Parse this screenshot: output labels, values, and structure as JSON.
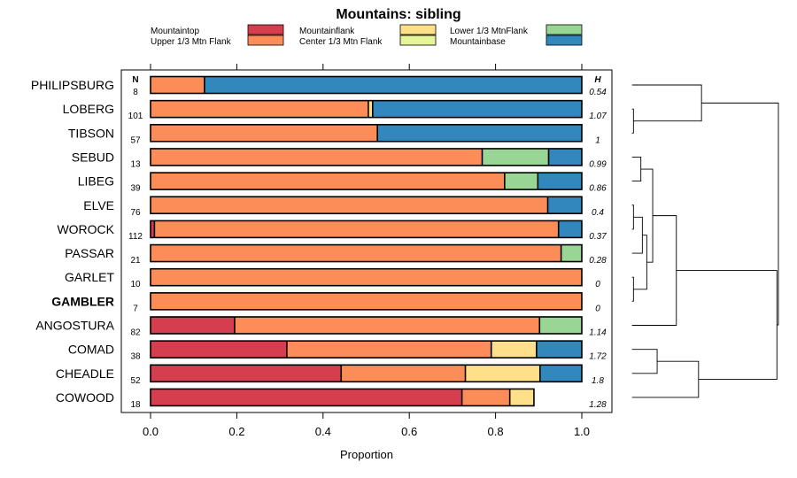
{
  "chart_data": {
    "type": "bar",
    "orientation": "horizontal",
    "stacked": true,
    "title": "Mountains: sibling",
    "xlabel": "Proportion",
    "ylabel": "",
    "xlim": [
      0,
      1
    ],
    "x_ticks": [
      "0.0",
      "0.2",
      "0.4",
      "0.6",
      "0.8",
      "1.0"
    ],
    "n_header": "N",
    "h_header": "H",
    "legend": [
      {
        "name": "Mountaintop",
        "color": "#d53e4f"
      },
      {
        "name": "Upper 1/3 Mtn Flank",
        "color": "#fc8d59"
      },
      {
        "name": "Mountainflank",
        "color": "#fee08b"
      },
      {
        "name": "Center 1/3 Mtn Flank",
        "color": "#e6f598"
      },
      {
        "name": "Lower 1/3 MtnFlank",
        "color": "#99d594"
      },
      {
        "name": "Mountainbase",
        "color": "#3288bd"
      }
    ],
    "highlight": "GAMBLER",
    "rows": [
      {
        "label": "PHILIPSBURG",
        "n": "8",
        "h": "0.54",
        "values": [
          0,
          0.125,
          0,
          0,
          0,
          0.875
        ]
      },
      {
        "label": "LOBERG",
        "n": "101",
        "h": "1.07",
        "values": [
          0,
          0.505,
          0.01,
          0,
          0,
          0.485
        ]
      },
      {
        "label": "TIBSON",
        "n": "57",
        "h": "1",
        "values": [
          0,
          0.526,
          0,
          0,
          0,
          0.474
        ]
      },
      {
        "label": "SEBUD",
        "n": "13",
        "h": "0.99",
        "values": [
          0,
          0.769,
          0,
          0,
          0.154,
          0.077
        ]
      },
      {
        "label": "LIBEG",
        "n": "39",
        "h": "0.86",
        "values": [
          0,
          0.821,
          0,
          0,
          0.077,
          0.102
        ]
      },
      {
        "label": "ELVE",
        "n": "76",
        "h": "0.4",
        "values": [
          0,
          0.921,
          0,
          0,
          0,
          0.079
        ]
      },
      {
        "label": "WOROCK",
        "n": "112",
        "h": "0.37",
        "values": [
          0.009,
          0.937,
          0,
          0,
          0,
          0.054
        ]
      },
      {
        "label": "PASSAR",
        "n": "21",
        "h": "0.28",
        "values": [
          0,
          0.952,
          0,
          0,
          0.048,
          0
        ]
      },
      {
        "label": "GARLET",
        "n": "10",
        "h": "0",
        "values": [
          0,
          1,
          0,
          0,
          0,
          0
        ]
      },
      {
        "label": "GAMBLER",
        "n": "7",
        "h": "0",
        "values": [
          0,
          1,
          0,
          0,
          0,
          0
        ]
      },
      {
        "label": "ANGOSTURA",
        "n": "82",
        "h": "1.14",
        "values": [
          0.195,
          0.707,
          0,
          0,
          0.098,
          0
        ]
      },
      {
        "label": "COMAD",
        "n": "38",
        "h": "1.72",
        "values": [
          0.316,
          0.474,
          0.105,
          0,
          0,
          0.105
        ]
      },
      {
        "label": "CHEADLE",
        "n": "52",
        "h": "1.8",
        "values": [
          0.442,
          0.288,
          0.173,
          0,
          0,
          0.097
        ]
      },
      {
        "label": "COWOOD",
        "n": "18",
        "h": "1.28",
        "values": [
          0.722,
          0.111,
          0.056,
          0,
          0,
          0
        ]
      }
    ],
    "dendrogram": {
      "nodes": [
        {
          "id": "n1",
          "a": "LOBERG",
          "b": "TIBSON",
          "height": 0.02
        },
        {
          "id": "n2",
          "a": "GARLET",
          "b": "GAMBLER",
          "height": 0.02
        },
        {
          "id": "n3",
          "a": "ELVE",
          "b": "WOROCK",
          "height": 0.02
        },
        {
          "id": "n4",
          "a": "SEBUD",
          "b": "LIBEG",
          "height": 0.07
        },
        {
          "id": "n5",
          "a": "n3",
          "b": "PASSAR",
          "height": 0.08
        },
        {
          "id": "n6",
          "a": "n5",
          "b": "n2",
          "height": 0.11
        },
        {
          "id": "n7",
          "a": "n4",
          "b": "n6",
          "height": 0.15
        },
        {
          "id": "n8",
          "a": "COMAD",
          "b": "CHEADLE",
          "height": 0.18
        },
        {
          "id": "n9",
          "a": "n7",
          "b": "ANGOSTURA",
          "height": 0.31
        },
        {
          "id": "n10",
          "a": "n8",
          "b": "COWOOD",
          "height": 0.46
        },
        {
          "id": "n11",
          "a": "PHILIPSBURG",
          "b": "n1",
          "height": 0.48
        },
        {
          "id": "n12",
          "a": "n9",
          "b": "n10",
          "height": 0.99
        },
        {
          "id": "n13",
          "a": "n11",
          "b": "n12",
          "height": 1.0
        }
      ]
    }
  }
}
